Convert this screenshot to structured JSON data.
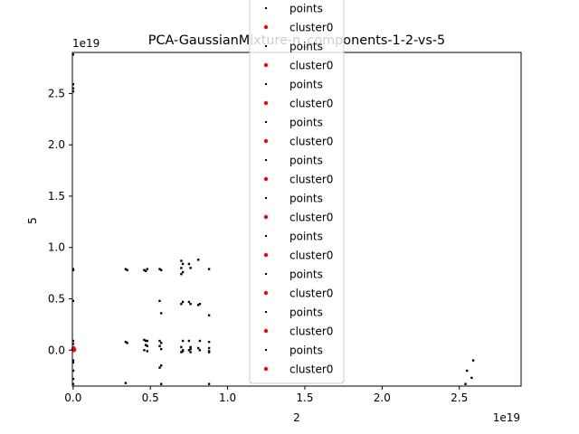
{
  "chart_data": {
    "type": "scatter",
    "title": "PCA-GaussianMixture-n_components-1-2-vs-5",
    "xlabel": "2",
    "ylabel": "5",
    "x_offset_label": "1e19",
    "y_offset_label": "1e19",
    "xlim": [
      -0.005,
      2.9
    ],
    "ylim": [
      -0.35,
      2.9
    ],
    "xticks": [
      0.0,
      0.5,
      1.0,
      1.5,
      2.0,
      2.5
    ],
    "xtick_labels": [
      "0.0",
      "0.5",
      "1.0",
      "1.5",
      "2.0",
      "2.5"
    ],
    "yticks": [
      0.0,
      0.5,
      1.0,
      1.5,
      2.0,
      2.5
    ],
    "ytick_labels": [
      "0.0",
      "0.5",
      "1.0",
      "1.5",
      "2.0",
      "2.5"
    ],
    "grid": false,
    "legend_position": "top-center",
    "legend": [
      {
        "label": "points",
        "color": "#000000"
      },
      {
        "label": "cluster0",
        "color": "#ff0000"
      },
      {
        "label": "points",
        "color": "#000000"
      },
      {
        "label": "cluster0",
        "color": "#ff0000"
      },
      {
        "label": "points",
        "color": "#000000"
      },
      {
        "label": "cluster0",
        "color": "#ff0000"
      },
      {
        "label": "points",
        "color": "#000000"
      },
      {
        "label": "cluster0",
        "color": "#ff0000"
      },
      {
        "label": "points",
        "color": "#000000"
      },
      {
        "label": "cluster0",
        "color": "#ff0000"
      },
      {
        "label": "points",
        "color": "#000000"
      },
      {
        "label": "cluster0",
        "color": "#ff0000"
      },
      {
        "label": "points",
        "color": "#000000"
      },
      {
        "label": "cluster0",
        "color": "#ff0000"
      },
      {
        "label": "points",
        "color": "#000000"
      },
      {
        "label": "cluster0",
        "color": "#ff0000"
      },
      {
        "label": "points",
        "color": "#000000"
      },
      {
        "label": "cluster0",
        "color": "#ff0000"
      },
      {
        "label": "points",
        "color": "#000000"
      },
      {
        "label": "cluster0",
        "color": "#ff0000"
      }
    ],
    "series": [
      {
        "color": "#000000",
        "x": [
          0.0,
          0.0,
          0.0,
          0.0,
          0.0,
          0.0,
          0.0,
          0.0,
          0.0,
          0.0,
          0.0,
          0.0,
          0.0,
          0.0,
          0.34,
          0.35,
          0.34,
          0.35,
          0.34,
          0.46,
          0.47,
          0.48,
          0.46,
          0.47,
          0.48,
          0.47,
          0.48,
          0.46,
          0.48,
          0.56,
          0.57,
          0.56,
          0.57,
          0.56,
          0.57,
          0.56,
          0.57,
          0.57,
          0.56,
          0.57,
          0.7,
          0.71,
          0.7,
          0.71,
          0.7,
          0.71,
          0.7,
          0.71,
          0.7,
          0.71,
          0.7,
          0.71,
          0.75,
          0.76,
          0.75,
          0.76,
          0.75,
          0.76,
          0.75,
          0.76,
          0.76,
          0.81,
          0.82,
          0.81,
          0.82,
          0.81,
          0.82,
          0.88,
          0.88,
          0.88,
          0.88,
          0.88,
          0.88,
          0.88,
          2.55,
          2.59,
          2.58,
          2.54
        ],
        "y": [
          2.88,
          2.59,
          2.55,
          2.52,
          0.79,
          0.78,
          0.48,
          0.09,
          0.06,
          -0.1,
          -0.12,
          -0.2,
          -0.28,
          -0.33,
          0.79,
          0.78,
          0.08,
          0.07,
          -0.32,
          0.78,
          0.77,
          0.79,
          0.1,
          0.09,
          0.09,
          0.05,
          0.04,
          0.0,
          -0.01,
          0.79,
          0.78,
          0.48,
          0.36,
          0.09,
          0.07,
          0.04,
          0.01,
          -0.15,
          -0.17,
          -0.33,
          0.87,
          0.84,
          0.8,
          0.76,
          0.74,
          0.47,
          0.45,
          0.09,
          0.03,
          -0.01,
          -0.02,
          0.0,
          0.84,
          0.8,
          0.47,
          0.45,
          0.09,
          0.03,
          0.0,
          -0.02,
          0.01,
          0.88,
          0.45,
          0.44,
          0.09,
          0.02,
          0.0,
          0.79,
          0.34,
          0.08,
          0.02,
          -0.01,
          -0.02,
          -0.33,
          -0.2,
          -0.1,
          -0.27,
          -0.33
        ]
      },
      {
        "color": "#ff0000",
        "x": [
          0.0,
          0.005,
          0.003,
          0.008
        ],
        "y": [
          0.01,
          0.0,
          0.02,
          0.005
        ]
      }
    ]
  }
}
